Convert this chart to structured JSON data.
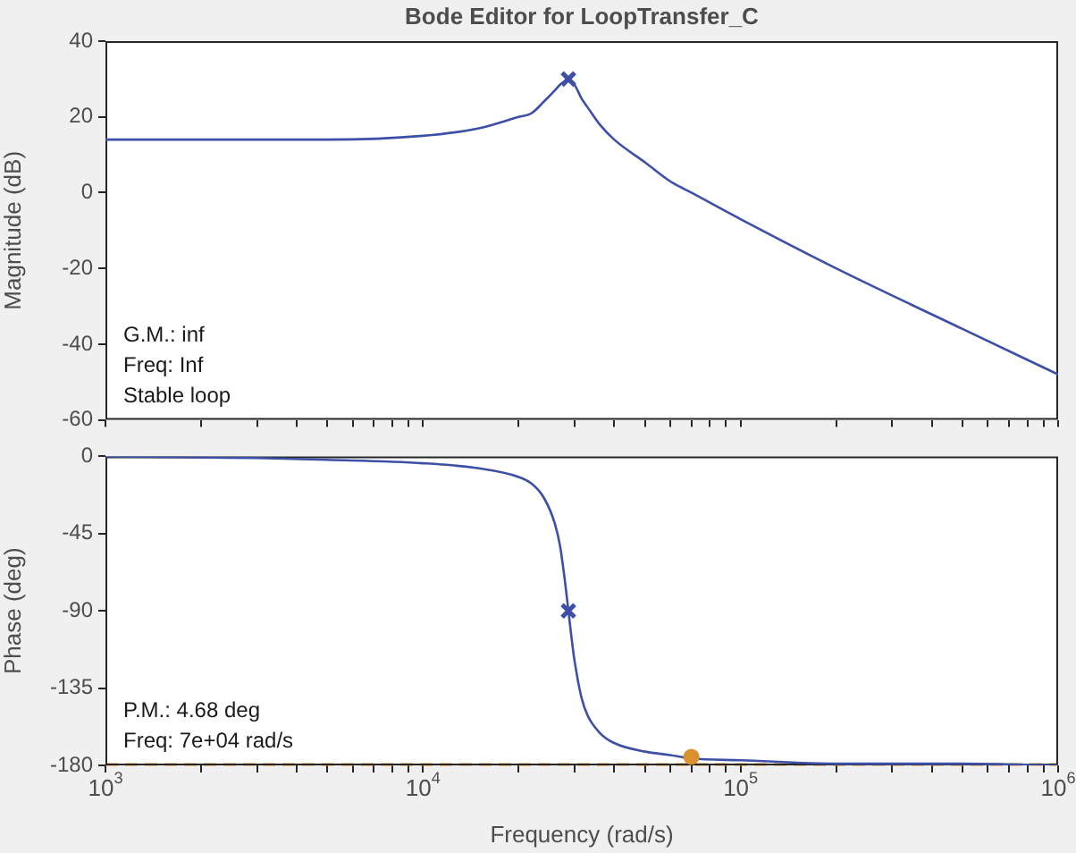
{
  "chart_data": [
    {
      "type": "line",
      "title": "Bode Editor for LoopTransfer_C",
      "ylabel": "Magnitude (dB)",
      "log": "x",
      "tick_labels": "y",
      "xlim": [
        1000,
        1000000
      ],
      "xticks": [
        {
          "value": 1000,
          "label": null
        },
        {
          "value": 2000,
          "label": null
        },
        {
          "value": 3000,
          "label": null
        },
        {
          "value": 4000,
          "label": null
        },
        {
          "value": 5000,
          "label": null
        },
        {
          "value": 6000,
          "label": null
        },
        {
          "value": 7000,
          "label": null
        },
        {
          "value": 8000,
          "label": null
        },
        {
          "value": 9000,
          "label": null
        },
        {
          "value": 10000,
          "label": null
        },
        {
          "value": 20000,
          "label": null
        },
        {
          "value": 30000,
          "label": null
        },
        {
          "value": 40000,
          "label": null
        },
        {
          "value": 50000,
          "label": null
        },
        {
          "value": 60000,
          "label": null
        },
        {
          "value": 70000,
          "label": null
        },
        {
          "value": 80000,
          "label": null
        },
        {
          "value": 90000,
          "label": null
        },
        {
          "value": 100000,
          "label": null
        },
        {
          "value": 200000,
          "label": null
        },
        {
          "value": 300000,
          "label": null
        },
        {
          "value": 400000,
          "label": null
        },
        {
          "value": 500000,
          "label": null
        },
        {
          "value": 600000,
          "label": null
        },
        {
          "value": 700000,
          "label": null
        },
        {
          "value": 800000,
          "label": null
        },
        {
          "value": 900000,
          "label": null
        },
        {
          "value": 1000000,
          "label": null
        }
      ],
      "ylim": [
        -60,
        40
      ],
      "yticks": [
        -60,
        -40,
        -20,
        0,
        20,
        40
      ],
      "x": [
        1000,
        3000,
        5000,
        10000,
        15000,
        20000,
        22000,
        24000,
        26000,
        27000,
        28000,
        28700,
        29500,
        30000,
        31500,
        33000,
        36000,
        40000,
        50000,
        60000,
        70000,
        100000,
        200000,
        500000,
        1000000
      ],
      "series": [
        {
          "color": "#3d4fa6",
          "marker": "none",
          "values": [
            14,
            14,
            14,
            15,
            17,
            20,
            21,
            24,
            27,
            28.5,
            29.5,
            30,
            29,
            28.5,
            25,
            22.5,
            18,
            14,
            8,
            3,
            0,
            -7,
            -20,
            -36,
            -48
          ]
        },
        {
          "type": "scatter",
          "color": "#3d4fa6",
          "marker": "cross",
          "values": [
            null,
            null,
            null,
            null,
            null,
            null,
            null,
            null,
            null,
            null,
            null,
            30,
            null,
            null,
            null,
            null,
            null,
            null,
            null,
            null,
            null,
            null,
            null,
            null,
            null
          ]
        }
      ],
      "annotations": [
        "G.M.: inf",
        "Freq: Inf",
        "Stable loop"
      ]
    },
    {
      "type": "line",
      "xlabel": "Frequency (rad/s)",
      "ylabel": "Phase (deg)",
      "log": "x",
      "xlim": [
        1000,
        1000000
      ],
      "xticks": [
        {
          "value": 1000,
          "label": "10$^{3}$"
        },
        {
          "value": 2000,
          "label": null
        },
        {
          "value": 3000,
          "label": null
        },
        {
          "value": 4000,
          "label": null
        },
        {
          "value": 5000,
          "label": null
        },
        {
          "value": 6000,
          "label": null
        },
        {
          "value": 7000,
          "label": null
        },
        {
          "value": 8000,
          "label": null
        },
        {
          "value": 9000,
          "label": null
        },
        {
          "value": 10000,
          "label": "10$^{4}$"
        },
        {
          "value": 20000,
          "label": null
        },
        {
          "value": 30000,
          "label": null
        },
        {
          "value": 40000,
          "label": null
        },
        {
          "value": 50000,
          "label": null
        },
        {
          "value": 60000,
          "label": null
        },
        {
          "value": 70000,
          "label": null
        },
        {
          "value": 80000,
          "label": null
        },
        {
          "value": 90000,
          "label": null
        },
        {
          "value": 100000,
          "label": "10$^{5}$"
        },
        {
          "value": 200000,
          "label": null
        },
        {
          "value": 300000,
          "label": null
        },
        {
          "value": 400000,
          "label": null
        },
        {
          "value": 500000,
          "label": null
        },
        {
          "value": 600000,
          "label": null
        },
        {
          "value": 700000,
          "label": null
        },
        {
          "value": 800000,
          "label": null
        },
        {
          "value": 900000,
          "label": null
        },
        {
          "value": 1000000,
          "label": "10$^{6}$"
        }
      ],
      "ylim": [
        -180,
        0
      ],
      "yticks": [
        -180,
        -135,
        -90,
        -45,
        0
      ],
      "x": [
        1000,
        3000,
        5000,
        10000,
        15000,
        20000,
        22000,
        24000,
        26000,
        27000,
        28000,
        28700,
        29500,
        30000,
        31500,
        33000,
        36000,
        40000,
        50000,
        60000,
        70000,
        100000,
        200000,
        500000,
        1000000
      ],
      "series": [
        {
          "color": "#3d4fa6",
          "marker": "none",
          "values": [
            0,
            -1,
            -2,
            -4,
            -7,
            -12,
            -16,
            -24,
            -39,
            -52,
            -73,
            -90,
            -109,
            -119,
            -140,
            -151,
            -161,
            -167,
            -172,
            -174,
            -176,
            -177,
            -179,
            -179,
            -180
          ]
        },
        {
          "type": "scatter",
          "color": "#3d4fa6",
          "marker": "cross",
          "values": [
            null,
            null,
            null,
            null,
            null,
            null,
            null,
            null,
            null,
            null,
            null,
            -90,
            null,
            null,
            null,
            null,
            null,
            null,
            null,
            null,
            null,
            null,
            null,
            null,
            null
          ]
        },
        {
          "type": "scatter",
          "color": "#d9922e",
          "marker": "circle",
          "values": [
            null,
            null,
            null,
            null,
            null,
            null,
            null,
            null,
            null,
            null,
            null,
            null,
            null,
            null,
            null,
            null,
            null,
            null,
            null,
            null,
            -175,
            null,
            null,
            null,
            null
          ]
        }
      ],
      "ref_lines": [
        {
          "axis": "y",
          "value": -180,
          "color": "#d9922e",
          "line_style": "dashed"
        }
      ],
      "annotations": [
        "P.M.: 4.68 deg",
        "Freq: 7e+04 rad/s"
      ]
    }
  ]
}
